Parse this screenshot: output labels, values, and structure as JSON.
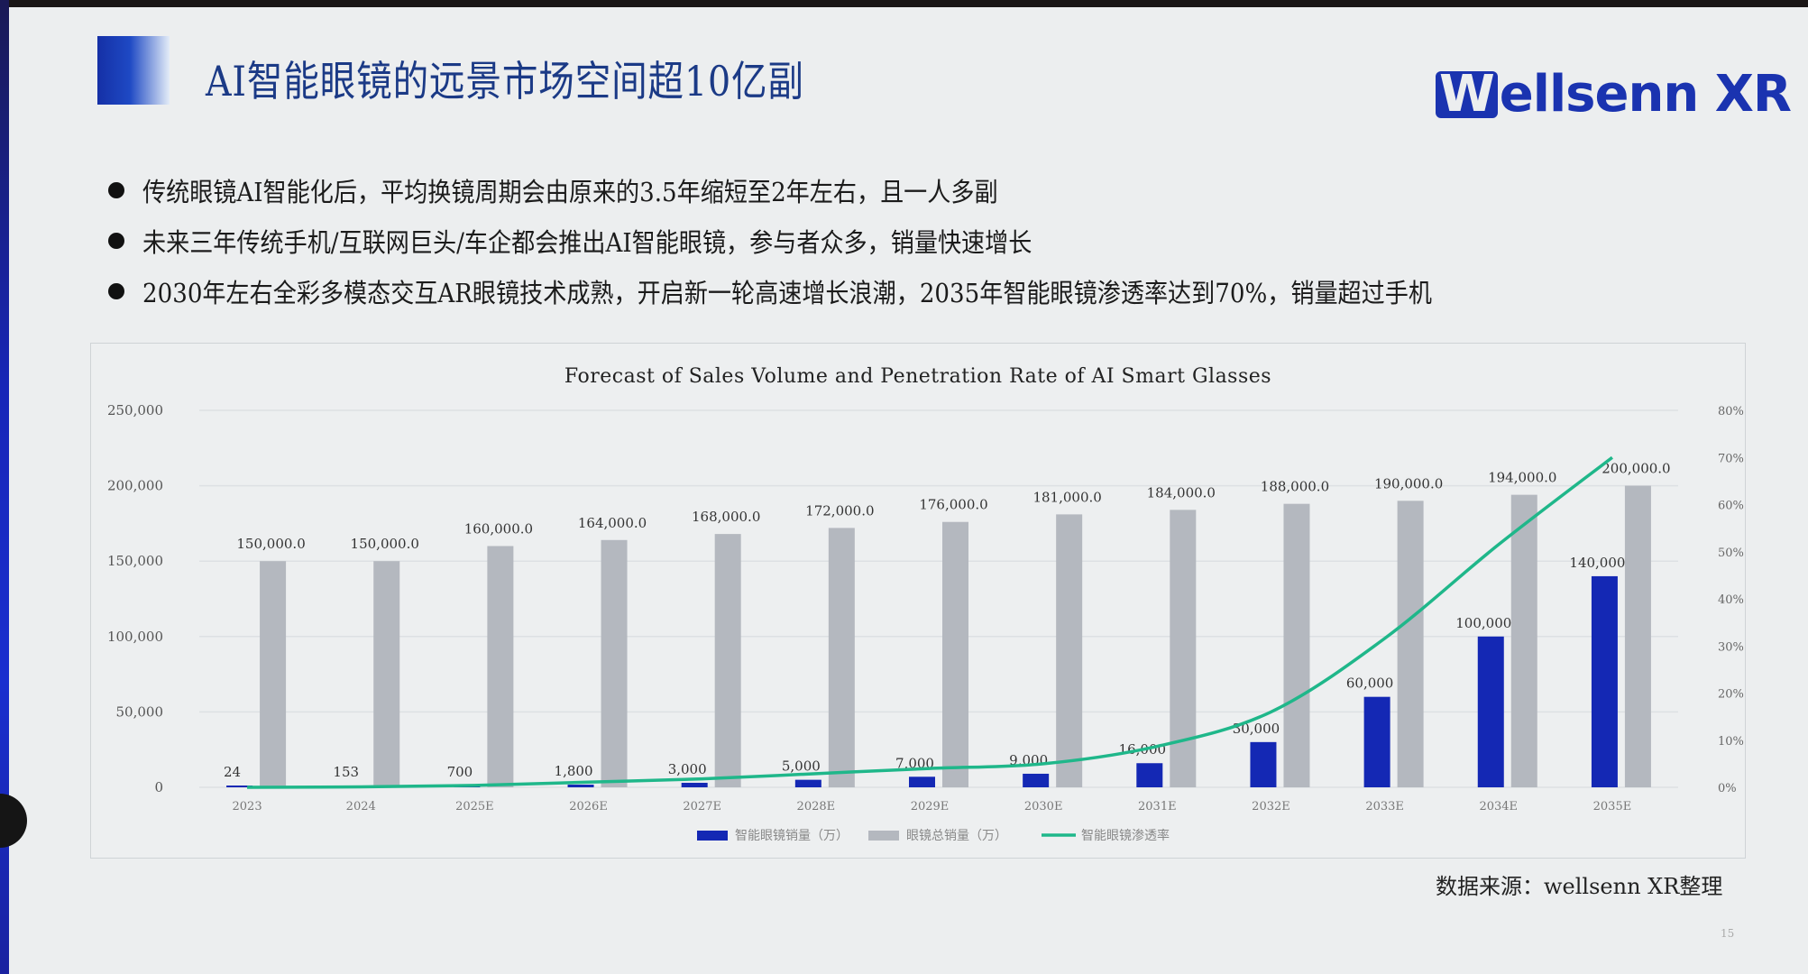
{
  "slide": {
    "title": "AI智能眼镜的远景市场空间超10亿副",
    "logo_text": "ellsenn XR",
    "logo_mark": "W",
    "bullets": [
      "传统眼镜AI智能化后，平均换镜周期会由原来的3.5年缩短至2年左右，且一人多副",
      "未来三年传统手机/互联网巨头/车企都会推出AI智能眼镜，参与者众多，销量快速增长",
      "2030年左右全彩多模态交互AR眼镜技术成熟，开启新一轮高速增长浪潮，2035年智能眼镜渗透率达到70%，销量超过手机"
    ],
    "source": "数据来源：wellsenn XR整理",
    "page_number": "15"
  },
  "colors": {
    "title": "#1b3a86",
    "brand": "#1a33b0",
    "smart_bar": "#1428b4",
    "total_bar": "#b4b8bf",
    "penetration_line": "#1fb78a",
    "background": "#eceeef"
  },
  "chart_data": {
    "type": "bar",
    "title": "Forecast of Sales Volume and Penetration Rate of AI Smart Glasses",
    "categories": [
      "2023",
      "2024",
      "2025E",
      "2026E",
      "2027E",
      "2028E",
      "2029E",
      "2030E",
      "2031E",
      "2032E",
      "2033E",
      "2034E",
      "2035E"
    ],
    "series": [
      {
        "name": "智能眼镜销量（万）",
        "kind": "bar",
        "axis": "left",
        "values": [
          24,
          153,
          700,
          1800,
          3000,
          5000,
          7000,
          9000,
          16000,
          30000,
          60000,
          100000,
          140000
        ],
        "labels": [
          "24",
          "153",
          "700",
          "1,800",
          "3,000",
          "5,000",
          "7,000",
          "9,000",
          "16,000",
          "30,000",
          "60,000",
          "100,000",
          "140,000"
        ]
      },
      {
        "name": "眼镜总销量（万）",
        "kind": "bar",
        "axis": "left",
        "values": [
          150000,
          150000,
          160000,
          164000,
          168000,
          172000,
          176000,
          181000,
          184000,
          188000,
          190000,
          194000,
          200000
        ],
        "labels": [
          "150,000.0",
          "150,000.0",
          "160,000.0",
          "164,000.0",
          "168,000.0",
          "172,000.0",
          "176,000.0",
          "181,000.0",
          "184,000.0",
          "188,000.0",
          "190,000.0",
          "194,000.0",
          "200,000.0"
        ]
      },
      {
        "name": "智能眼镜渗透率",
        "kind": "line",
        "axis": "right",
        "values": [
          0.0,
          0.1,
          0.4,
          1.1,
          1.8,
          2.9,
          4.0,
          5.0,
          8.7,
          16.0,
          31.6,
          51.5,
          70.0
        ]
      }
    ],
    "xlabel": "",
    "ylabel": "",
    "ylim": [
      0,
      250000
    ],
    "y_ticks": [
      "0",
      "50,000",
      "100,000",
      "150,000",
      "200,000",
      "250,000"
    ],
    "y2lim": [
      0,
      80
    ],
    "y2_ticks": [
      "0%",
      "10%",
      "20%",
      "30%",
      "40%",
      "50%",
      "60%",
      "70%",
      "80%"
    ],
    "grid": true,
    "legend_position": "bottom"
  }
}
